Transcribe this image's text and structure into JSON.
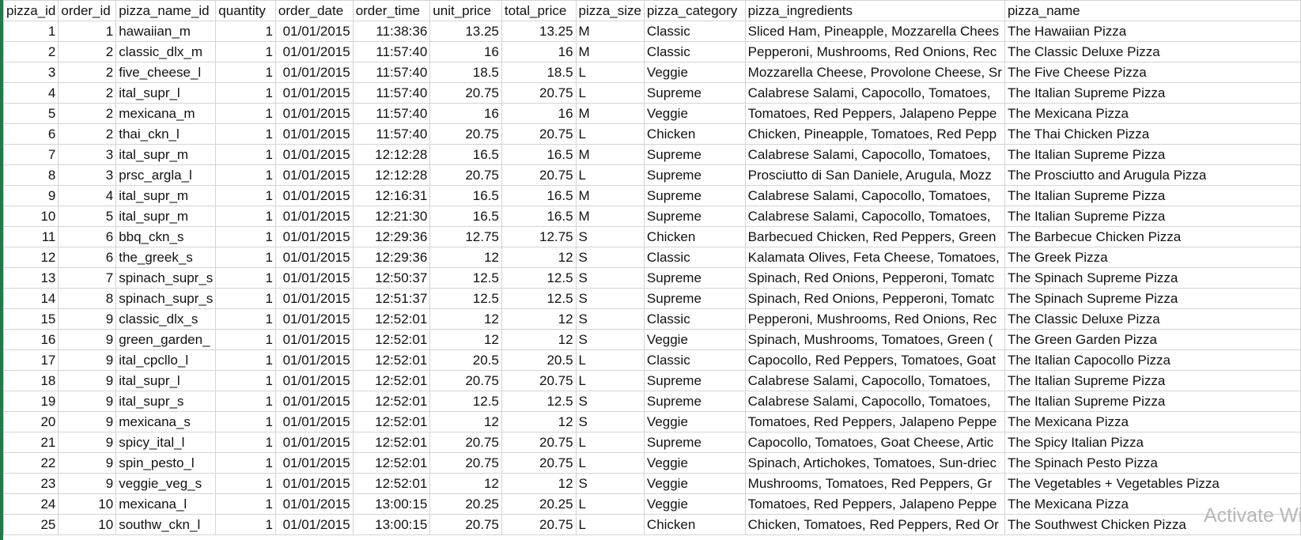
{
  "sheet": {
    "columns": [
      {
        "key": "pizza_id",
        "label": "pizza_id",
        "align": "num"
      },
      {
        "key": "order_id",
        "label": "order_id",
        "align": "num"
      },
      {
        "key": "pizza_name_id",
        "label": "pizza_name_id",
        "align": "txt"
      },
      {
        "key": "quantity",
        "label": "quantity",
        "align": "num"
      },
      {
        "key": "order_date",
        "label": "order_date",
        "align": "num"
      },
      {
        "key": "order_time",
        "label": "order_time",
        "align": "num"
      },
      {
        "key": "unit_price",
        "label": "unit_price",
        "align": "num"
      },
      {
        "key": "total_price",
        "label": "total_price",
        "align": "num"
      },
      {
        "key": "pizza_size",
        "label": "pizza_size",
        "align": "txt"
      },
      {
        "key": "pizza_category",
        "label": "pizza_category",
        "align": "txt"
      },
      {
        "key": "pizza_ingredients",
        "label": "pizza_ingredients",
        "align": "txt"
      },
      {
        "key": "pizza_name",
        "label": "pizza_name",
        "align": "txt"
      }
    ],
    "rows": [
      [
        "1",
        "1",
        "hawaiian_m",
        "1",
        "01/01/2015",
        "11:38:36",
        "13.25",
        "13.25",
        "M",
        "Classic",
        "Sliced Ham, Pineapple, Mozzarella Chees",
        "The Hawaiian Pizza"
      ],
      [
        "2",
        "2",
        "classic_dlx_m",
        "1",
        "01/01/2015",
        "11:57:40",
        "16",
        "16",
        "M",
        "Classic",
        "Pepperoni, Mushrooms, Red Onions, Rec",
        "The Classic Deluxe Pizza"
      ],
      [
        "3",
        "2",
        "five_cheese_l",
        "1",
        "01/01/2015",
        "11:57:40",
        "18.5",
        "18.5",
        "L",
        "Veggie",
        "Mozzarella Cheese, Provolone Cheese, Sr",
        "The Five Cheese Pizza"
      ],
      [
        "4",
        "2",
        "ital_supr_l",
        "1",
        "01/01/2015",
        "11:57:40",
        "20.75",
        "20.75",
        "L",
        "Supreme",
        "Calabrese Salami, Capocollo, Tomatoes,",
        "The Italian Supreme Pizza"
      ],
      [
        "5",
        "2",
        "mexicana_m",
        "1",
        "01/01/2015",
        "11:57:40",
        "16",
        "16",
        "M",
        "Veggie",
        "Tomatoes, Red Peppers, Jalapeno Peppe",
        "The Mexicana Pizza"
      ],
      [
        "6",
        "2",
        "thai_ckn_l",
        "1",
        "01/01/2015",
        "11:57:40",
        "20.75",
        "20.75",
        "L",
        "Chicken",
        "Chicken, Pineapple, Tomatoes, Red Pepp",
        "The Thai Chicken Pizza"
      ],
      [
        "7",
        "3",
        "ital_supr_m",
        "1",
        "01/01/2015",
        "12:12:28",
        "16.5",
        "16.5",
        "M",
        "Supreme",
        "Calabrese Salami, Capocollo, Tomatoes,",
        "The Italian Supreme Pizza"
      ],
      [
        "8",
        "3",
        "prsc_argla_l",
        "1",
        "01/01/2015",
        "12:12:28",
        "20.75",
        "20.75",
        "L",
        "Supreme",
        "Prosciutto di San Daniele, Arugula, Mozz",
        "The Prosciutto and Arugula Pizza"
      ],
      [
        "9",
        "4",
        "ital_supr_m",
        "1",
        "01/01/2015",
        "12:16:31",
        "16.5",
        "16.5",
        "M",
        "Supreme",
        "Calabrese Salami, Capocollo, Tomatoes,",
        "The Italian Supreme Pizza"
      ],
      [
        "10",
        "5",
        "ital_supr_m",
        "1",
        "01/01/2015",
        "12:21:30",
        "16.5",
        "16.5",
        "M",
        "Supreme",
        "Calabrese Salami, Capocollo, Tomatoes,",
        "The Italian Supreme Pizza"
      ],
      [
        "11",
        "6",
        "bbq_ckn_s",
        "1",
        "01/01/2015",
        "12:29:36",
        "12.75",
        "12.75",
        "S",
        "Chicken",
        "Barbecued Chicken, Red Peppers, Green",
        "The Barbecue Chicken Pizza"
      ],
      [
        "12",
        "6",
        "the_greek_s",
        "1",
        "01/01/2015",
        "12:29:36",
        "12",
        "12",
        "S",
        "Classic",
        "Kalamata Olives, Feta Cheese, Tomatoes,",
        "The Greek Pizza"
      ],
      [
        "13",
        "7",
        "spinach_supr_s",
        "1",
        "01/01/2015",
        "12:50:37",
        "12.5",
        "12.5",
        "S",
        "Supreme",
        "Spinach, Red Onions, Pepperoni, Tomatc",
        "The Spinach Supreme Pizza"
      ],
      [
        "14",
        "8",
        "spinach_supr_s",
        "1",
        "01/01/2015",
        "12:51:37",
        "12.5",
        "12.5",
        "S",
        "Supreme",
        "Spinach, Red Onions, Pepperoni, Tomatc",
        "The Spinach Supreme Pizza"
      ],
      [
        "15",
        "9",
        "classic_dlx_s",
        "1",
        "01/01/2015",
        "12:52:01",
        "12",
        "12",
        "S",
        "Classic",
        "Pepperoni, Mushrooms, Red Onions, Rec",
        "The Classic Deluxe Pizza"
      ],
      [
        "16",
        "9",
        "green_garden_",
        "1",
        "01/01/2015",
        "12:52:01",
        "12",
        "12",
        "S",
        "Veggie",
        "Spinach, Mushrooms, Tomatoes, Green (",
        "The Green Garden Pizza"
      ],
      [
        "17",
        "9",
        "ital_cpcllo_l",
        "1",
        "01/01/2015",
        "12:52:01",
        "20.5",
        "20.5",
        "L",
        "Classic",
        "Capocollo, Red Peppers, Tomatoes, Goat",
        "The Italian Capocollo Pizza"
      ],
      [
        "18",
        "9",
        "ital_supr_l",
        "1",
        "01/01/2015",
        "12:52:01",
        "20.75",
        "20.75",
        "L",
        "Supreme",
        "Calabrese Salami, Capocollo, Tomatoes,",
        "The Italian Supreme Pizza"
      ],
      [
        "19",
        "9",
        "ital_supr_s",
        "1",
        "01/01/2015",
        "12:52:01",
        "12.5",
        "12.5",
        "S",
        "Supreme",
        "Calabrese Salami, Capocollo, Tomatoes,",
        "The Italian Supreme Pizza"
      ],
      [
        "20",
        "9",
        "mexicana_s",
        "1",
        "01/01/2015",
        "12:52:01",
        "12",
        "12",
        "S",
        "Veggie",
        "Tomatoes, Red Peppers, Jalapeno Peppe",
        "The Mexicana Pizza"
      ],
      [
        "21",
        "9",
        "spicy_ital_l",
        "1",
        "01/01/2015",
        "12:52:01",
        "20.75",
        "20.75",
        "L",
        "Supreme",
        "Capocollo, Tomatoes, Goat Cheese, Artic",
        "The Spicy Italian Pizza"
      ],
      [
        "22",
        "9",
        "spin_pesto_l",
        "1",
        "01/01/2015",
        "12:52:01",
        "20.75",
        "20.75",
        "L",
        "Veggie",
        "Spinach, Artichokes, Tomatoes, Sun-driec",
        "The Spinach Pesto Pizza"
      ],
      [
        "23",
        "9",
        "veggie_veg_s",
        "1",
        "01/01/2015",
        "12:52:01",
        "12",
        "12",
        "S",
        "Veggie",
        "Mushrooms, Tomatoes, Red Peppers, Gr",
        "The Vegetables + Vegetables Pizza"
      ],
      [
        "24",
        "10",
        "mexicana_l",
        "1",
        "01/01/2015",
        "13:00:15",
        "20.25",
        "20.25",
        "L",
        "Veggie",
        "Tomatoes, Red Peppers, Jalapeno Peppe",
        "The Mexicana Pizza"
      ],
      [
        "25",
        "10",
        "southw_ckn_l",
        "1",
        "01/01/2015",
        "13:00:15",
        "20.75",
        "20.75",
        "L",
        "Chicken",
        "Chicken, Tomatoes, Red Peppers, Red Or",
        "The Southwest Chicken Pizza"
      ]
    ]
  },
  "watermark": {
    "title": "Activate Wi"
  },
  "colors": {
    "grid": "#d4d4d4",
    "left_edge": "#1f7a47",
    "watermark": "#b7b7b7"
  }
}
